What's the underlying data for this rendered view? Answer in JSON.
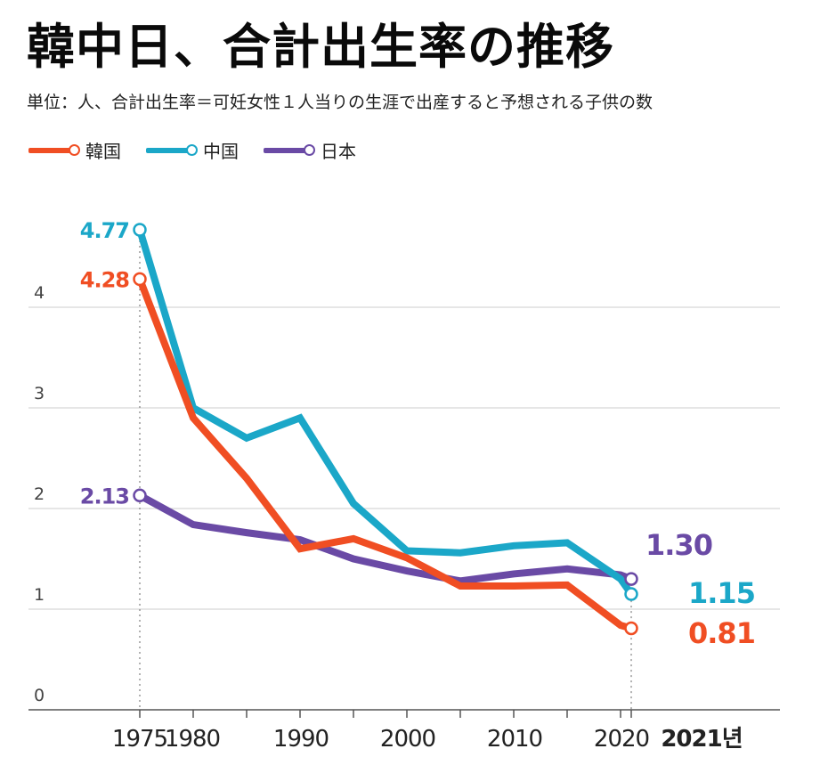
{
  "title": "韓中日、合計出生率の推移",
  "subtitle": "単位：人、合計出生率＝可妊女性１人当りの生涯で出産すると予想される子供の数",
  "legend": [
    {
      "label": "韓国",
      "color": "#f04e23"
    },
    {
      "label": "中国",
      "color": "#1ba7c8"
    },
    {
      "label": "日本",
      "color": "#6a4aa5"
    }
  ],
  "chart_data": {
    "type": "line",
    "title": "韓中日、合計出生率の推移",
    "xlabel": "",
    "ylabel": "",
    "ylim": [
      0,
      4.8
    ],
    "yticks": [
      "0",
      "1",
      "2",
      "3",
      "4"
    ],
    "xtick_labels": [
      "1975",
      "1980",
      "1990",
      "2000",
      "2010",
      "2020",
      "2021년"
    ],
    "xtick_values": [
      1975,
      1980,
      1990,
      2000,
      2010,
      2020,
      2021
    ],
    "series": [
      {
        "name": "中国",
        "color": "#1ba7c8",
        "x": [
          1975,
          1980,
          1985,
          1990,
          1995,
          2000,
          2005,
          2010,
          2015,
          2020,
          2021
        ],
        "y": [
          4.77,
          3.0,
          2.7,
          2.9,
          2.05,
          1.58,
          1.56,
          1.63,
          1.66,
          1.3,
          1.15
        ]
      },
      {
        "name": "韓国",
        "color": "#f04e23",
        "x": [
          1975,
          1980,
          1985,
          1990,
          1995,
          2000,
          2005,
          2010,
          2015,
          2020,
          2021
        ],
        "y": [
          4.28,
          2.9,
          2.3,
          1.6,
          1.7,
          1.51,
          1.23,
          1.23,
          1.24,
          0.84,
          0.81
        ]
      },
      {
        "name": "日本",
        "color": "#6a4aa5",
        "x": [
          1975,
          1980,
          1985,
          1990,
          1995,
          2000,
          2005,
          2010,
          2015,
          2020,
          2021
        ],
        "y": [
          2.13,
          1.84,
          1.76,
          1.69,
          1.5,
          1.38,
          1.28,
          1.35,
          1.4,
          1.34,
          1.3
        ]
      }
    ],
    "annotations": {
      "start": [
        {
          "series": "中国",
          "label": "4.77"
        },
        {
          "series": "韓国",
          "label": "4.28"
        },
        {
          "series": "日本",
          "label": "2.13"
        }
      ],
      "end": [
        {
          "series": "日本",
          "label": "1.30"
        },
        {
          "series": "中国",
          "label": "1.15"
        },
        {
          "series": "韓国",
          "label": "0.81"
        }
      ]
    }
  }
}
